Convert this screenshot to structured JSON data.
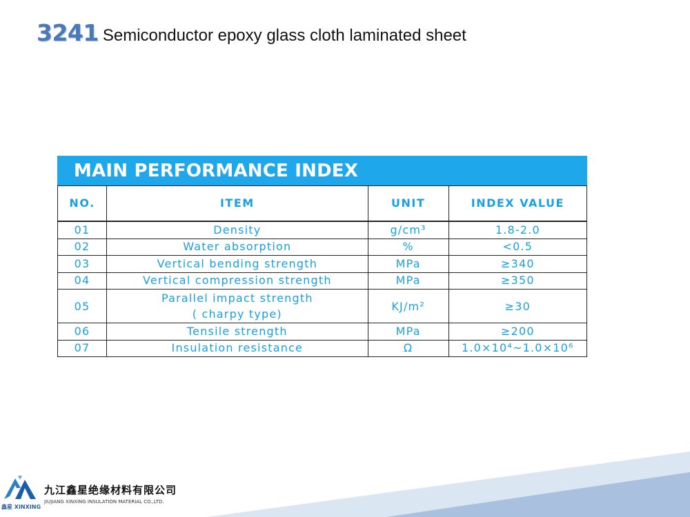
{
  "header": {
    "model_number": "3241",
    "product_name": "Semiconductor epoxy glass cloth laminated sheet"
  },
  "table": {
    "title": "MAIN PERFORMANCE INDEX",
    "columns": [
      "NO.",
      "ITEM",
      "UNIT",
      "INDEX VALUE"
    ],
    "rows": [
      {
        "no": "01",
        "item": "Density",
        "item_line2": "",
        "unit": "g/cm³",
        "value": "1.8-2.0"
      },
      {
        "no": "02",
        "item": "Water absorption",
        "item_line2": "",
        "unit": "%",
        "value": "<0.5"
      },
      {
        "no": "03",
        "item": "Vertical bending strength",
        "item_line2": "",
        "unit": "MPa",
        "value": "≥340"
      },
      {
        "no": "04",
        "item": "Vertical compression strength",
        "item_line2": "",
        "unit": "MPa",
        "value": "≥350"
      },
      {
        "no": "05",
        "item": "Parallel impact strength",
        "item_line2": "( charpy type)",
        "unit": "KJ/m²",
        "value": "≥30"
      },
      {
        "no": "06",
        "item": "Tensile strength",
        "item_line2": "",
        "unit": "MPa",
        "value": "≥200"
      },
      {
        "no": "07",
        "item": "Insulation resistance",
        "item_line2": "",
        "unit": "Ω",
        "value": "1.0×10⁴~1.0×10⁶"
      }
    ]
  },
  "footer": {
    "company_cn": "九江鑫星绝缘材料有限公司",
    "company_en": "JIUJIANG XINXING INSULATION MATERIAL CO.,LTD.",
    "logo_text": "鑫星 XINXING",
    "logo_icon": "company-logo-icon"
  },
  "colors": {
    "accent": "#1ea7ea",
    "table_text": "#1aa0de",
    "title_number": "#4a78b8",
    "footer_band_light": "#dbe6f3",
    "footer_band_dark": "#a9c0de"
  }
}
